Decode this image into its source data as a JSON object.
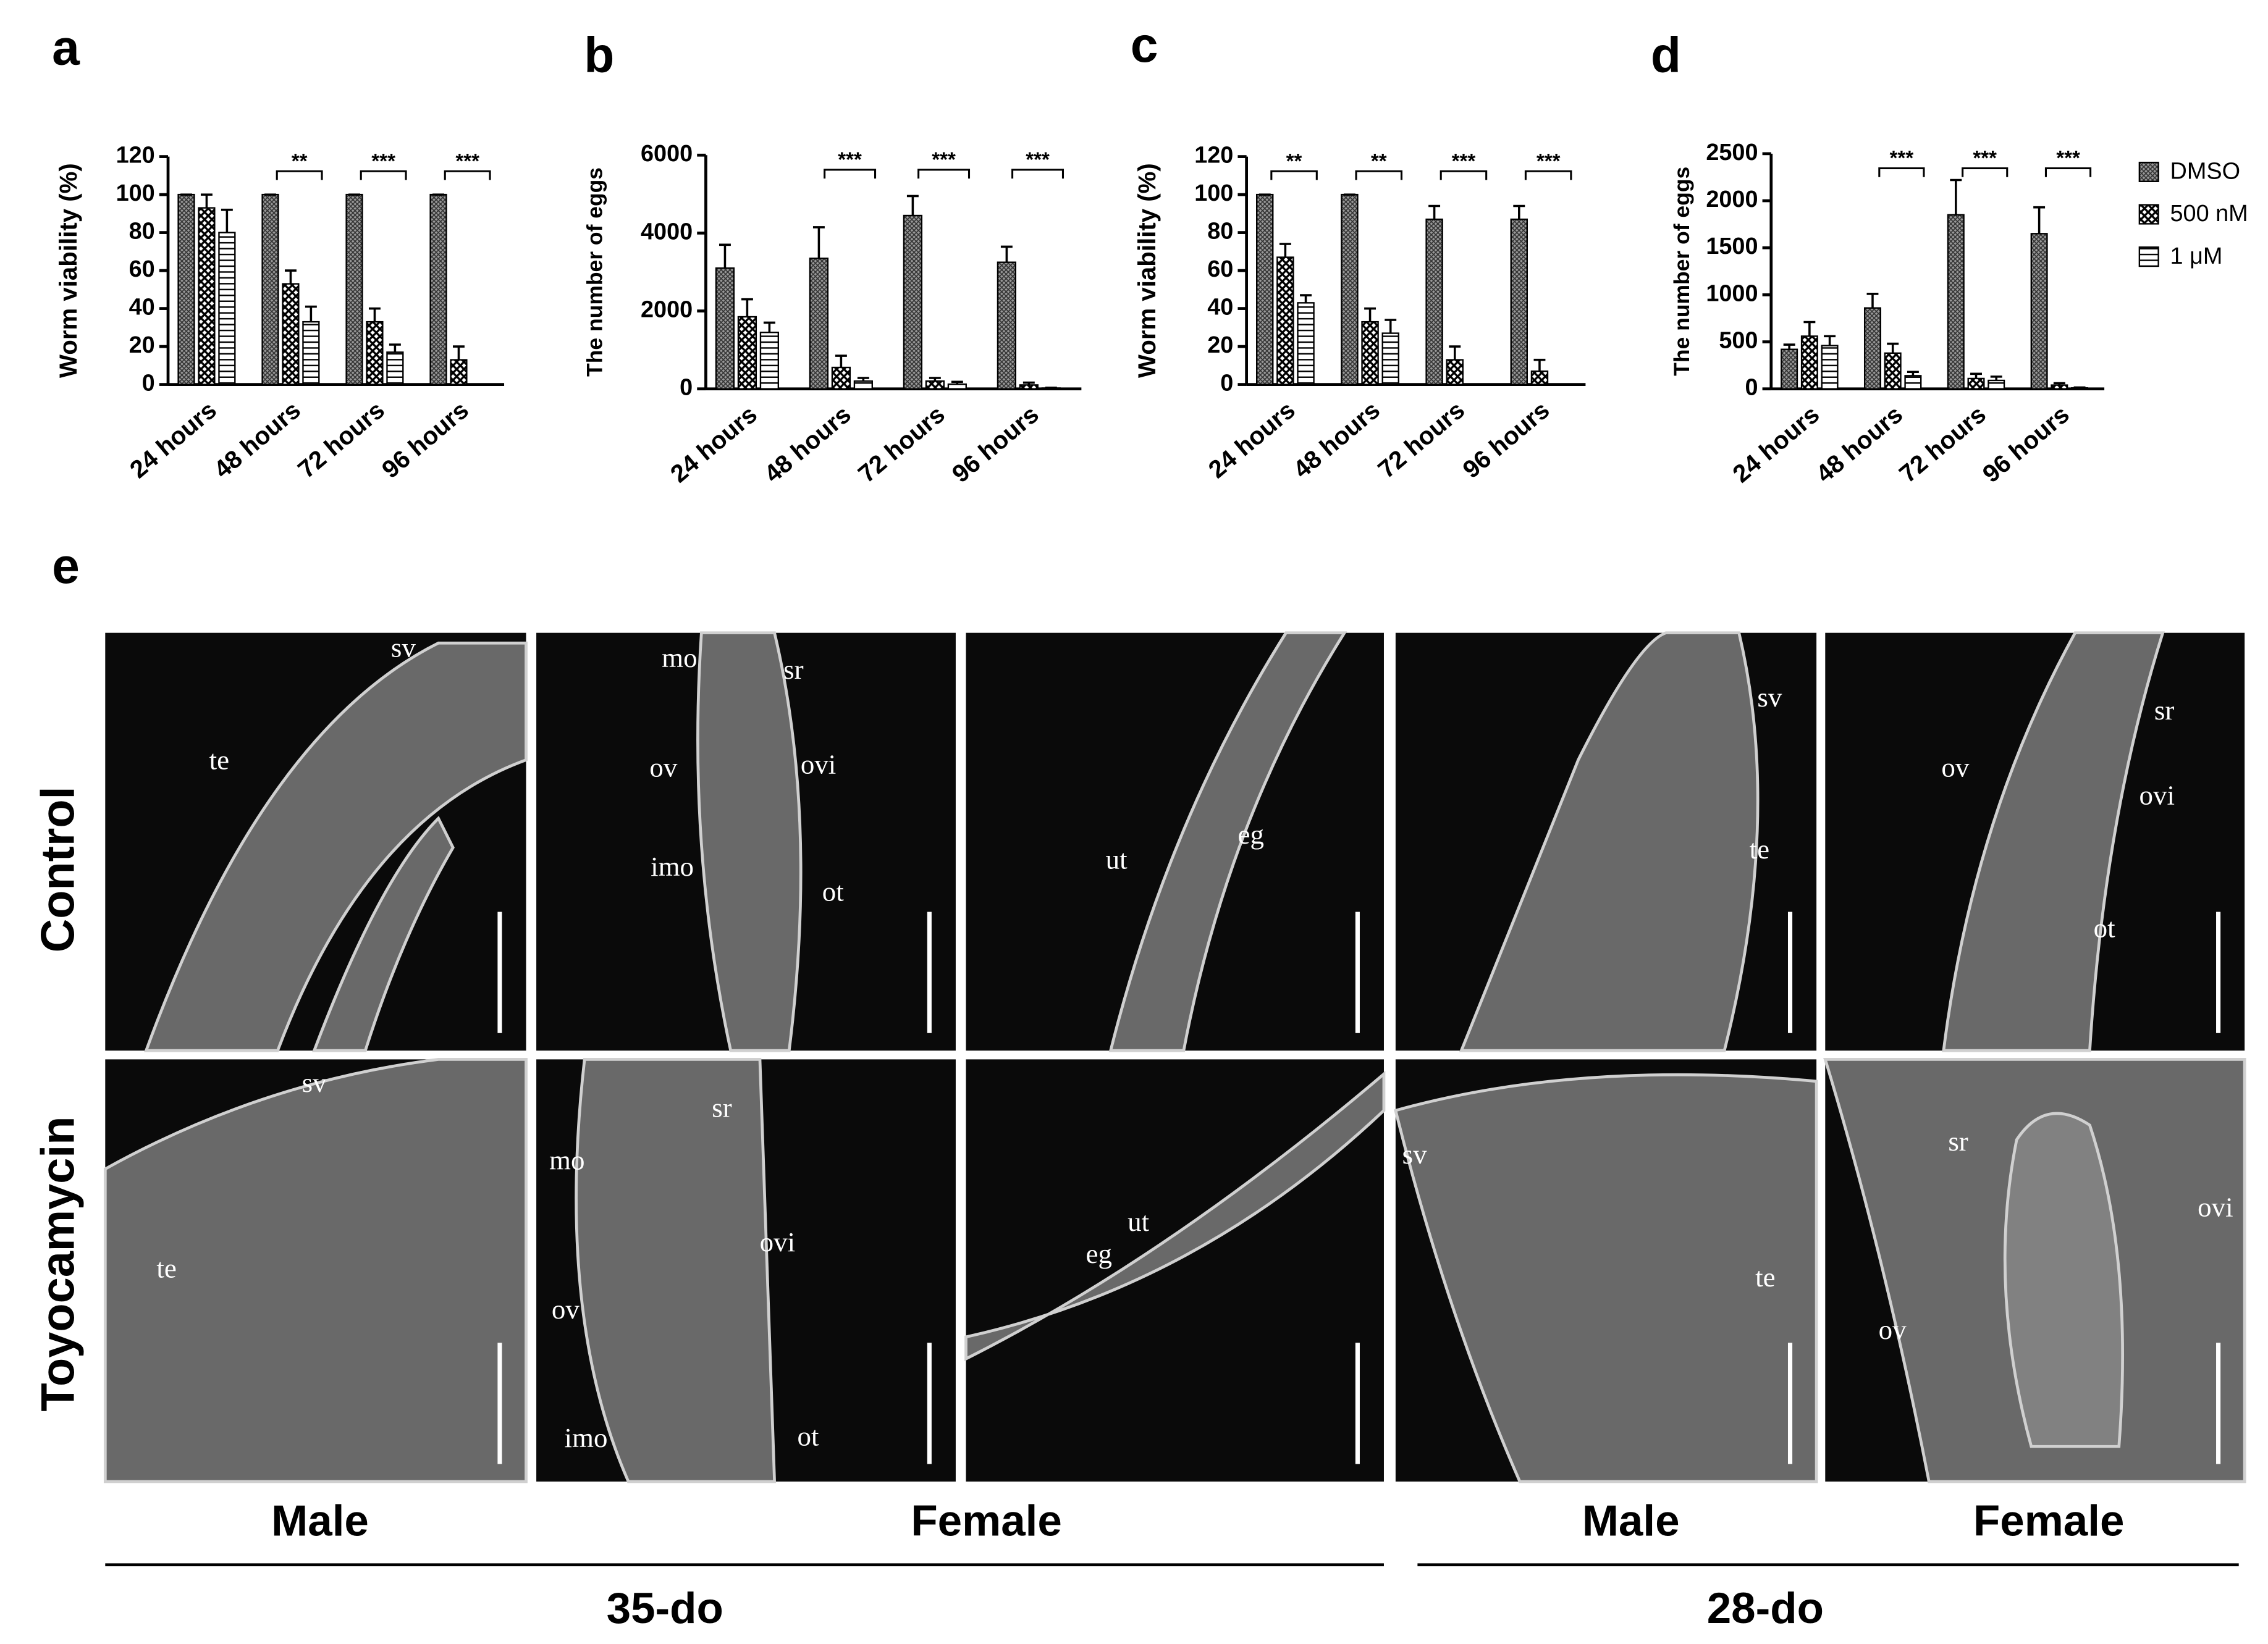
{
  "chart_data": [
    {
      "type": "bar",
      "panel_label": "a",
      "ylabel": "Worm viability (%)",
      "categories": [
        "24 hours",
        "48 hours",
        "72 hours",
        "96 hours"
      ],
      "ylim": [
        0,
        120
      ],
      "yticks": [
        0,
        20,
        40,
        60,
        80,
        100,
        120
      ],
      "series": [
        {
          "name": "DMSO",
          "pattern": "crosshatch",
          "values": [
            100,
            100,
            100,
            100
          ],
          "errors": [
            0,
            0,
            0,
            0
          ]
        },
        {
          "name": "500 nM",
          "pattern": "checker",
          "values": [
            93,
            53,
            33,
            13
          ],
          "errors": [
            7,
            7,
            7,
            7
          ]
        },
        {
          "name": "1 μM",
          "pattern": "hstripe",
          "values": [
            80,
            33,
            17,
            0
          ],
          "errors": [
            12,
            8,
            4,
            0
          ]
        }
      ],
      "significance": [
        null,
        "**",
        "***",
        "***"
      ]
    },
    {
      "type": "bar",
      "panel_label": "b",
      "ylabel": "The number of eggs",
      "categories": [
        "24 hours",
        "48 hours",
        "72 hours",
        "96 hours"
      ],
      "ylim": [
        0,
        6000
      ],
      "yticks": [
        0,
        2000,
        4000,
        6000
      ],
      "series": [
        {
          "name": "DMSO",
          "pattern": "crosshatch",
          "values": [
            3100,
            3350,
            4450,
            3250
          ],
          "errors": [
            600,
            800,
            500,
            400
          ]
        },
        {
          "name": "500 nM",
          "pattern": "checker",
          "values": [
            1850,
            550,
            200,
            100
          ],
          "errors": [
            450,
            300,
            80,
            60
          ]
        },
        {
          "name": "1 μM",
          "pattern": "hstripe",
          "values": [
            1450,
            200,
            120,
            20
          ],
          "errors": [
            250,
            80,
            60,
            10
          ]
        }
      ],
      "significance": [
        null,
        "***",
        "***",
        "***"
      ]
    },
    {
      "type": "bar",
      "panel_label": "c",
      "ylabel": "Worm viability (%)",
      "categories": [
        "24 hours",
        "48 hours",
        "72 hours",
        "96 hours"
      ],
      "ylim": [
        0,
        120
      ],
      "yticks": [
        0,
        20,
        40,
        60,
        80,
        100,
        120
      ],
      "series": [
        {
          "name": "DMSO",
          "pattern": "crosshatch",
          "values": [
            100,
            100,
            87,
            87
          ],
          "errors": [
            0,
            0,
            7,
            7
          ]
        },
        {
          "name": "500 nM",
          "pattern": "checker",
          "values": [
            67,
            33,
            13,
            7
          ],
          "errors": [
            7,
            7,
            7,
            6
          ]
        },
        {
          "name": "1 μM",
          "pattern": "hstripe",
          "values": [
            43,
            27,
            0,
            0
          ],
          "errors": [
            4,
            7,
            0,
            0
          ]
        }
      ],
      "significance": [
        "**",
        "**",
        "***",
        "***"
      ]
    },
    {
      "type": "bar",
      "panel_label": "d",
      "ylabel": "The number of eggs",
      "categories": [
        "24 hours",
        "48 hours",
        "72 hours",
        "96 hours"
      ],
      "ylim": [
        0,
        2500
      ],
      "yticks": [
        0,
        500,
        1000,
        1500,
        2000,
        2500
      ],
      "legend": "right",
      "series": [
        {
          "name": "DMSO",
          "pattern": "crosshatch",
          "values": [
            420,
            860,
            1850,
            1650
          ],
          "errors": [
            50,
            150,
            370,
            280
          ]
        },
        {
          "name": "500 nM",
          "pattern": "checker",
          "values": [
            560,
            380,
            110,
            40
          ],
          "errors": [
            150,
            100,
            50,
            20
          ]
        },
        {
          "name": "1 μM",
          "pattern": "hstripe",
          "values": [
            460,
            140,
            90,
            10
          ],
          "errors": [
            100,
            40,
            40,
            5
          ]
        }
      ],
      "significance": [
        null,
        "***",
        "***",
        "***"
      ]
    }
  ],
  "figure_e": {
    "panel_label": "e",
    "rows": [
      "Control",
      "Toyocamycin"
    ],
    "columns": [
      "Male",
      "Female",
      "Male",
      "Female"
    ],
    "ages": [
      "35-do",
      "28-do"
    ],
    "images": [
      [
        {
          "labels": [
            "sv",
            "te"
          ]
        },
        {
          "labels": [
            "mo",
            "sr",
            "ov",
            "ovi",
            "imo",
            "ot"
          ]
        },
        {
          "labels": [
            "ut",
            "eg"
          ]
        },
        {
          "labels": [
            "sv",
            "te"
          ]
        },
        {
          "labels": [
            "sr",
            "ov",
            "ovi",
            "ot"
          ]
        }
      ],
      [
        {
          "labels": [
            "sv",
            "te"
          ]
        },
        {
          "labels": [
            "sr",
            "mo",
            "ovi",
            "ov",
            "imo",
            "ot"
          ]
        },
        {
          "labels": [
            "eg",
            "ut"
          ]
        },
        {
          "labels": [
            "sv",
            "te"
          ]
        },
        {
          "labels": [
            "sr",
            "ovi",
            "ov"
          ]
        }
      ]
    ]
  }
}
